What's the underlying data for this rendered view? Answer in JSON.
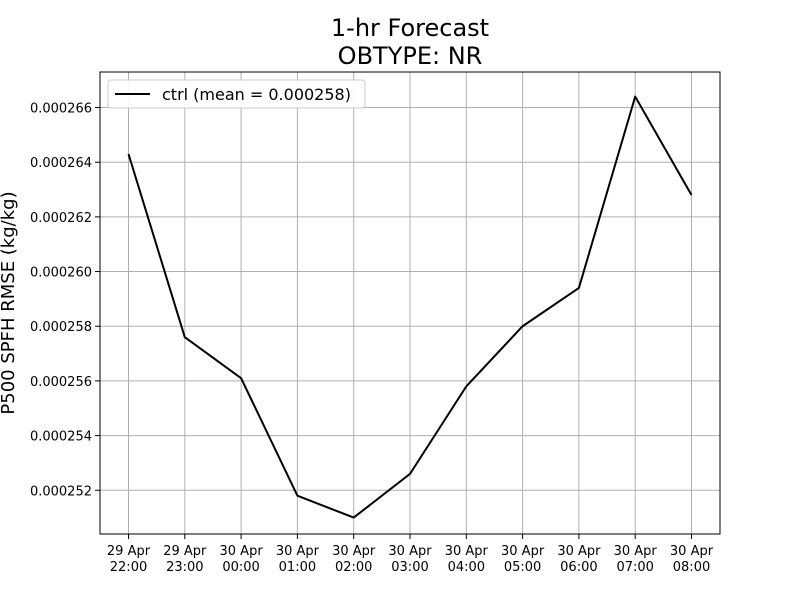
{
  "chart_data": {
    "type": "line",
    "title": "1-hr Forecast",
    "subtitle": "OBTYPE: NR",
    "xlabel": "",
    "ylabel": "P500 SPFH RMSE (kg/kg)",
    "x": [
      [
        "29 Apr",
        "22:00"
      ],
      [
        "29 Apr",
        "23:00"
      ],
      [
        "30 Apr",
        "00:00"
      ],
      [
        "30 Apr",
        "01:00"
      ],
      [
        "30 Apr",
        "02:00"
      ],
      [
        "30 Apr",
        "03:00"
      ],
      [
        "30 Apr",
        "04:00"
      ],
      [
        "30 Apr",
        "05:00"
      ],
      [
        "30 Apr",
        "06:00"
      ],
      [
        "30 Apr",
        "07:00"
      ],
      [
        "30 Apr",
        "08:00"
      ]
    ],
    "ylim": [
      0.0002504,
      0.0002673
    ],
    "yticks": [
      "0.000252",
      "0.000254",
      "0.000256",
      "0.000258",
      "0.000260",
      "0.000262",
      "0.000264",
      "0.000266"
    ],
    "grid": true,
    "legend_position": "top-left",
    "series": [
      {
        "name": "ctrl (mean = 0.000258)",
        "color": "#000000",
        "values": [
          0.0002643,
          0.0002576,
          0.0002561,
          0.0002518,
          0.000251,
          0.0002526,
          0.0002558,
          0.000258,
          0.0002594,
          0.0002664,
          0.0002628
        ]
      }
    ]
  }
}
